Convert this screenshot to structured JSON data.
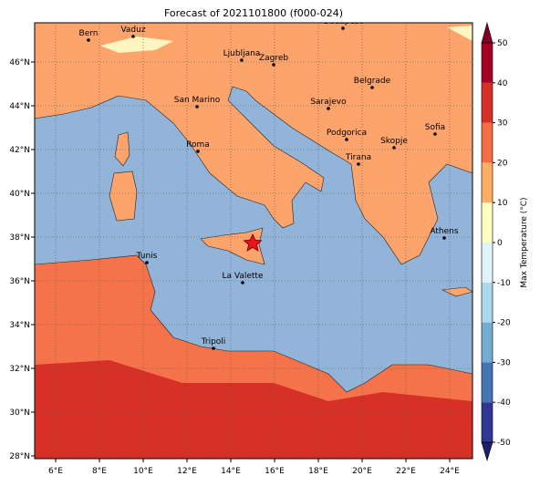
{
  "title": "Forecast of 2021101800 (f000-024)",
  "map": {
    "xticks": [
      {
        "value": 6,
        "label": "6°E"
      },
      {
        "value": 8,
        "label": "8°E"
      },
      {
        "value": 10,
        "label": "10°E"
      },
      {
        "value": 12,
        "label": "12°E"
      },
      {
        "value": 14,
        "label": "14°E"
      },
      {
        "value": 16,
        "label": "16°E"
      },
      {
        "value": 18,
        "label": "18°E"
      },
      {
        "value": 20,
        "label": "20°E"
      },
      {
        "value": 22,
        "label": "22°E"
      },
      {
        "value": 24,
        "label": "24°E"
      }
    ],
    "yticks": [
      {
        "value": 28,
        "label": "28°N"
      },
      {
        "value": 30,
        "label": "30°N"
      },
      {
        "value": 32,
        "label": "32°N"
      },
      {
        "value": 34,
        "label": "34°N"
      },
      {
        "value": 36,
        "label": "36°N"
      },
      {
        "value": 38,
        "label": "38°N"
      },
      {
        "value": 40,
        "label": "40°N"
      },
      {
        "value": 42,
        "label": "42°N"
      },
      {
        "value": 44,
        "label": "44°N"
      },
      {
        "value": 46,
        "label": "46°N"
      }
    ],
    "cities": [
      "Bern",
      "Vaduz",
      "Budapest",
      "Ljubljana",
      "Zagreb",
      "Belgrade",
      "San Marino",
      "Sarajevo",
      "Sofia",
      "Podgorica",
      "Skopje",
      "Roma",
      "Tirana",
      "Athens",
      "Tunis",
      "La Valette",
      "Tripoli"
    ]
  },
  "colorbar": {
    "label": "Max Temperature (°C)",
    "ticks": [
      -50,
      -40,
      -30,
      -20,
      -10,
      0,
      10,
      20,
      30,
      40,
      50
    ],
    "colors": [
      "#313695",
      "#4575b4",
      "#74add1",
      "#abd9e9",
      "#e0f3f8",
      "#ffffbf",
      "#fdae61",
      "#f46d43",
      "#d73027",
      "#a50026"
    ],
    "under_color": "#1a1f6e",
    "over_color": "#800026"
  }
}
